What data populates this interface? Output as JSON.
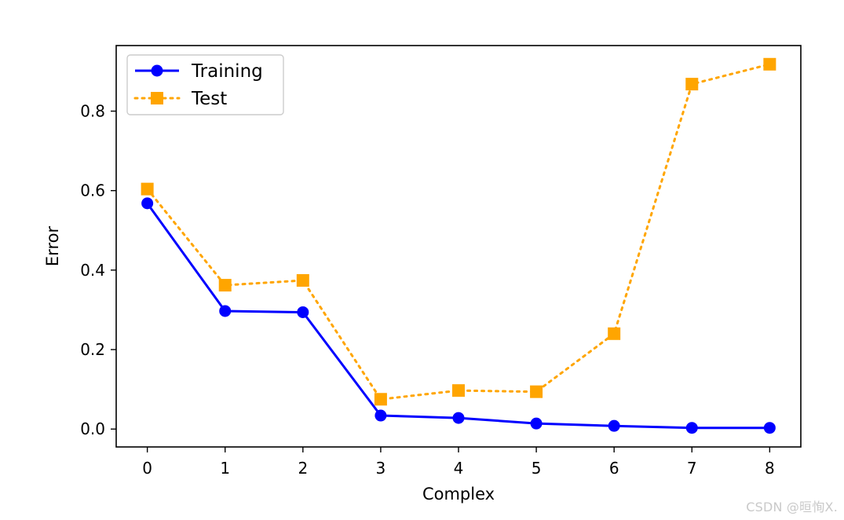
{
  "chart_data": {
    "type": "line",
    "title": "",
    "xlabel": "Complex",
    "ylabel": "Error",
    "x": [
      0,
      1,
      2,
      3,
      4,
      5,
      6,
      7,
      8
    ],
    "xticks": [
      "0",
      "1",
      "2",
      "3",
      "4",
      "5",
      "6",
      "7",
      "8"
    ],
    "yticks": [
      0.0,
      0.2,
      0.4,
      0.6,
      0.8
    ],
    "ytick_labels": [
      "0.0",
      "0.2",
      "0.4",
      "0.6",
      "0.8"
    ],
    "xlim": [
      -0.4,
      8.4
    ],
    "ylim": [
      -0.045,
      0.965
    ],
    "grid": false,
    "legend_position": "upper-left",
    "series": [
      {
        "name": "Training",
        "color": "#0000ff",
        "line_style": "solid",
        "marker": "circle",
        "values": [
          0.568,
          0.297,
          0.294,
          0.034,
          0.028,
          0.014,
          0.008,
          0.003,
          0.003
        ]
      },
      {
        "name": "Test",
        "color": "#ffa500",
        "line_style": "dotted",
        "marker": "square",
        "values": [
          0.604,
          0.362,
          0.374,
          0.075,
          0.097,
          0.094,
          0.24,
          0.868,
          0.918
        ]
      }
    ]
  },
  "watermark": "CSDN @晅恂X."
}
